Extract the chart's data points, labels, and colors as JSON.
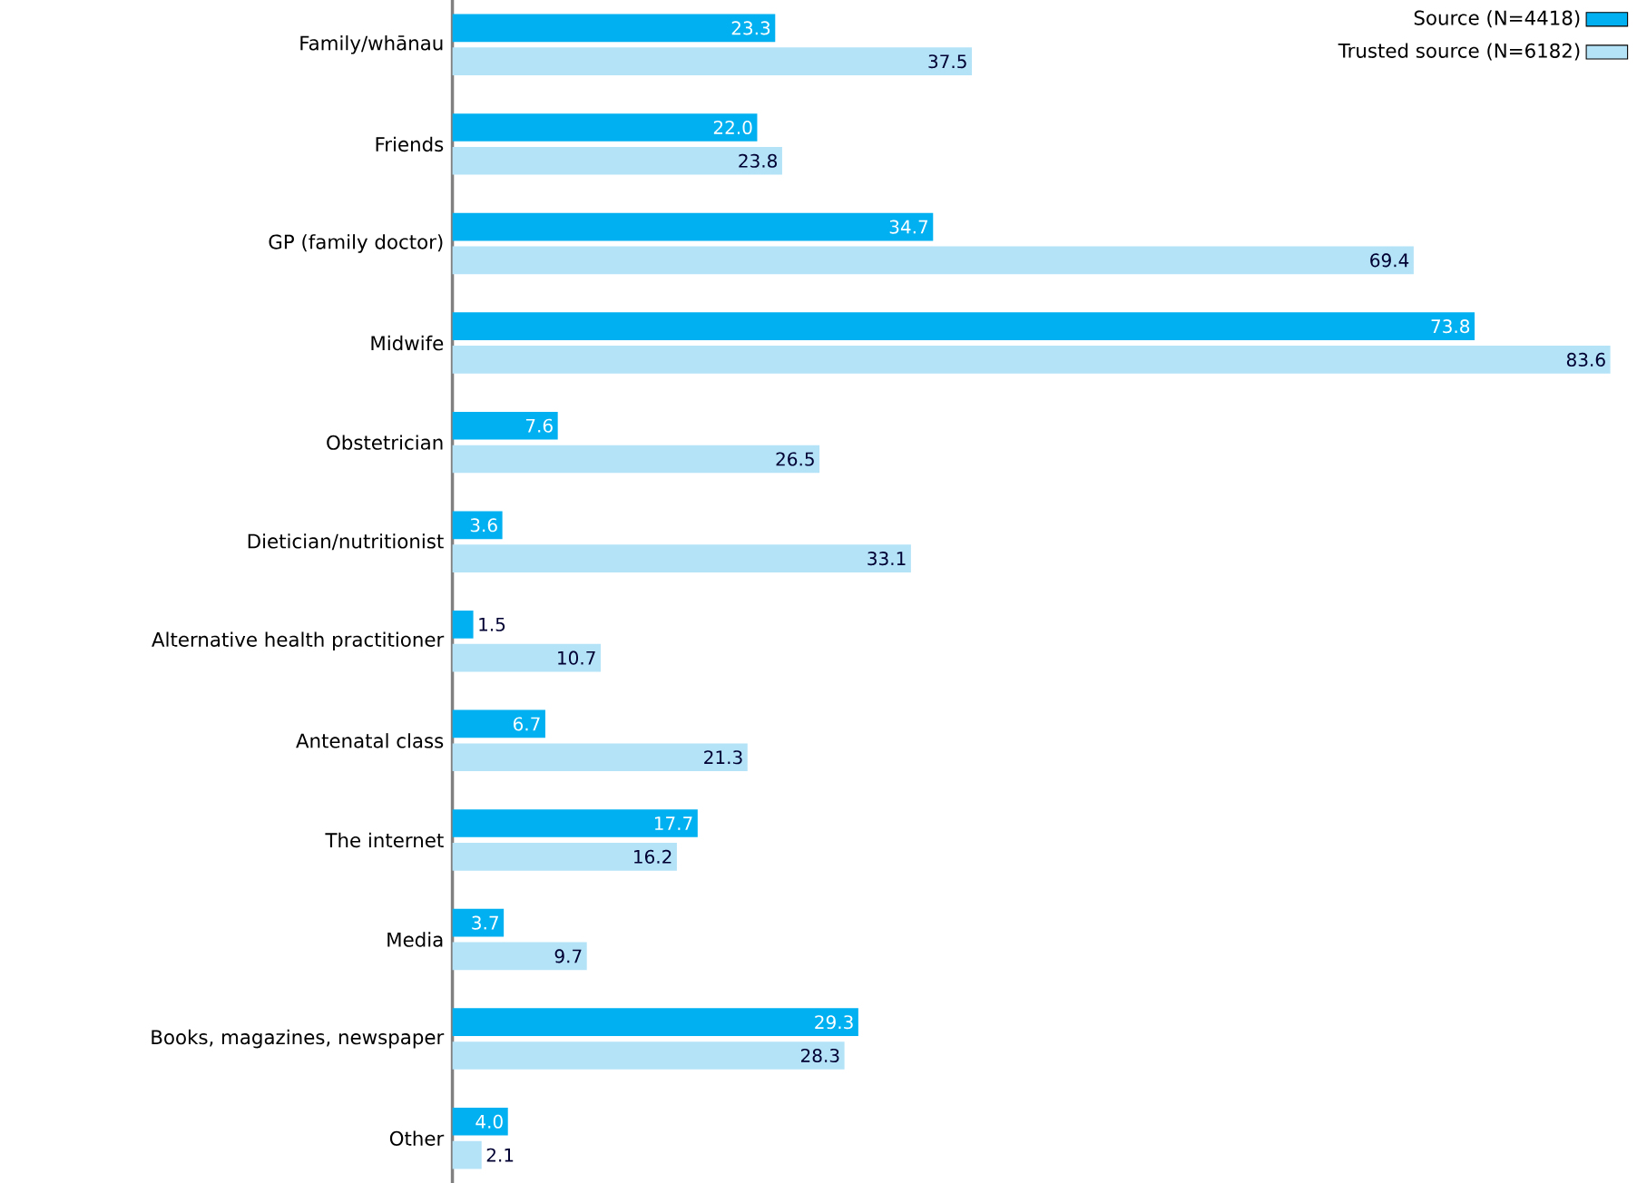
{
  "chart_data": {
    "type": "bar",
    "orientation": "horizontal",
    "legend": "top right",
    "categories": [
      "Family/whānau",
      "Friends",
      "GP (family doctor)",
      "Midwife",
      "Obstetrician",
      "Dietician/nutritionist",
      "Alternative health practitioner",
      "Antenatal class",
      "The internet",
      "Media",
      "Books, magazines, newspaper",
      "Other"
    ],
    "series": [
      {
        "name": "Source (N=4418)",
        "color": "#00b0f0",
        "values": [
          23.3,
          22.0,
          34.7,
          73.8,
          7.6,
          3.6,
          1.5,
          6.7,
          17.7,
          3.7,
          29.3,
          4.0
        ],
        "value_labels": [
          "23.3",
          "22.0",
          "34.7",
          "73.8",
          "7.6",
          "3.6",
          "1.5",
          "6.7",
          "17.7",
          "3.7",
          "29.3",
          "4.0"
        ]
      },
      {
        "name": "Trusted source (N=6182)",
        "color": "#b4e3f8",
        "values": [
          37.5,
          23.8,
          69.4,
          83.6,
          26.5,
          33.1,
          10.7,
          21.3,
          16.2,
          9.7,
          28.3,
          2.1
        ],
        "value_labels": [
          "37.5",
          "23.8",
          "69.4",
          "83.6",
          "26.5",
          "33.1",
          "10.7",
          "21.3",
          "16.2",
          "9.7",
          "28.3",
          "2.1"
        ]
      }
    ]
  }
}
